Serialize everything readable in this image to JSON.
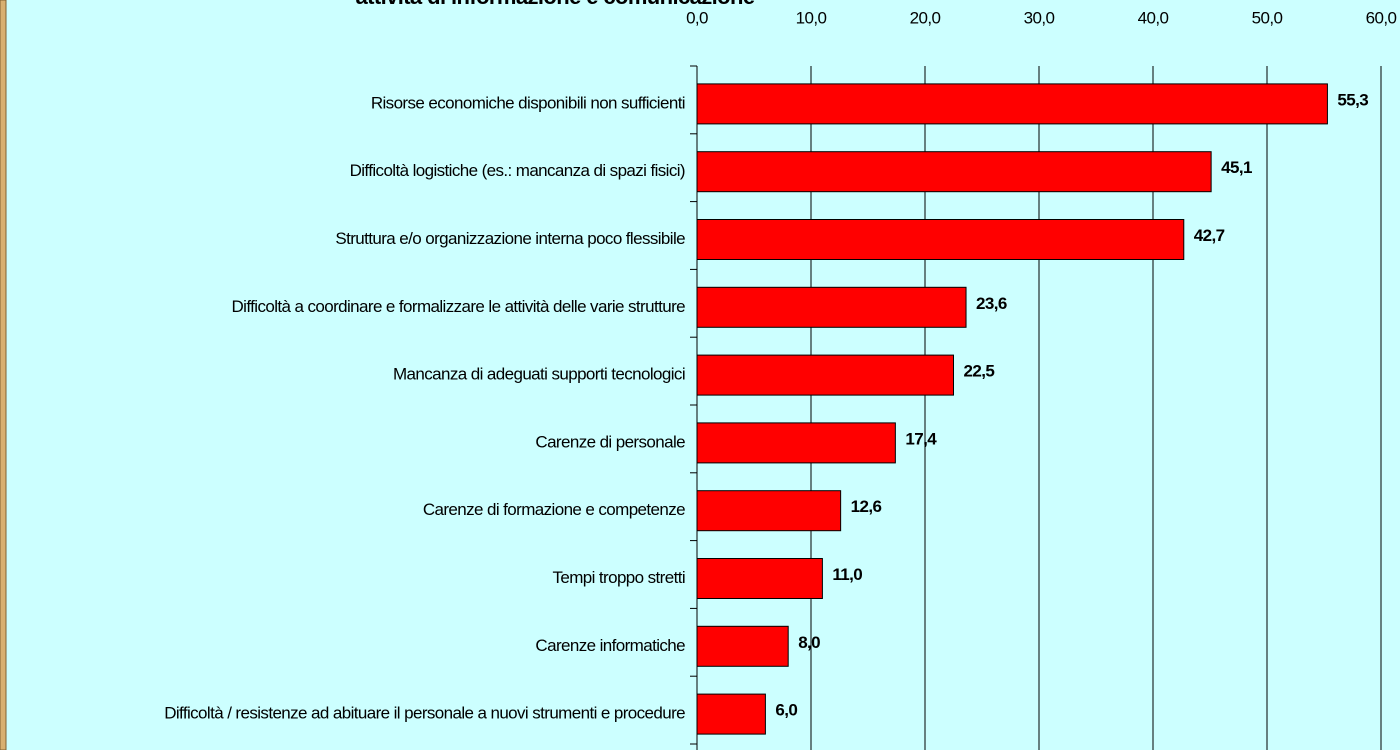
{
  "chart_data": {
    "type": "hbar",
    "title": "attività di informazione e comunicazione",
    "categories": [
      "Risorse economiche disponibili non sufficienti",
      "Difficoltà logistiche (es.: mancanza di spazi fisici)",
      "Struttura e/o organizzazione interna poco flessibile",
      "Difficoltà a coordinare e formalizzare le attività delle varie strutture",
      "Mancanza di adeguati supporti tecnologici",
      "Carenze di personale",
      "Carenze di formazione e competenze",
      "Tempi troppo stretti",
      "Carenze informatiche",
      "Difficoltà / resistenze ad abituare il personale a nuovi strumenti e procedure"
    ],
    "values": [
      55.3,
      45.1,
      42.7,
      23.6,
      22.5,
      17.4,
      12.6,
      11.0,
      8.0,
      6.0
    ],
    "value_labels": [
      "55,3",
      "45,1",
      "42,7",
      "23,6",
      "22,5",
      "17,4",
      "12,6",
      "11,0",
      "8,0",
      "6,0"
    ],
    "color": "#ff0000",
    "xlim": [
      0,
      60
    ],
    "xticks": [
      {
        "value": 0,
        "label": "0,0"
      },
      {
        "value": 10,
        "label": "10,0"
      },
      {
        "value": 20,
        "label": "20,0"
      },
      {
        "value": 30,
        "label": "30,0"
      },
      {
        "value": 40,
        "label": "40,0"
      },
      {
        "value": 50,
        "label": "50,0"
      },
      {
        "value": 60,
        "label": "60,0"
      }
    ],
    "grid": true
  }
}
